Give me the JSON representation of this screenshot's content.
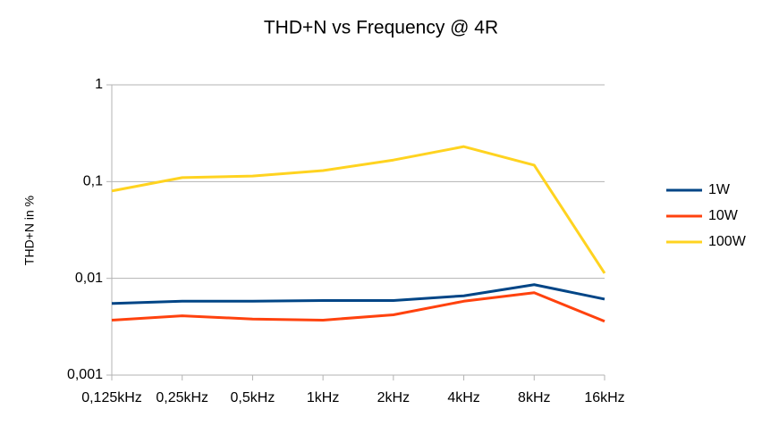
{
  "chart_data": {
    "type": "line",
    "title": "THD+N vs Frequency @ 4R",
    "y_label": "THD+N in %",
    "categories": [
      "0,125kHz",
      "0,25kHz",
      "0,5kHz",
      "1kHz",
      "2kHz",
      "4kHz",
      "8kHz",
      "16kHz"
    ],
    "series": [
      {
        "name": "1W",
        "color": "#004586",
        "values": [
          0.0055,
          0.0058,
          0.0058,
          0.0059,
          0.0059,
          0.0066,
          0.0086,
          0.0061
        ]
      },
      {
        "name": "10W",
        "color": "#ff420e",
        "values": [
          0.0037,
          0.0041,
          0.0038,
          0.0037,
          0.0042,
          0.0058,
          0.0071,
          0.0036
        ]
      },
      {
        "name": "100W",
        "color": "#ffd320",
        "values": [
          0.08,
          0.11,
          0.114,
          0.13,
          0.167,
          0.23,
          0.148,
          0.0113
        ]
      }
    ],
    "ylim": [
      0.001,
      1
    ],
    "log_y": true,
    "yticks": [
      {
        "value": 0.001,
        "label": "0,001"
      },
      {
        "value": 0.01,
        "label": "0,01"
      },
      {
        "value": 0.1,
        "label": "0,1"
      },
      1
    ],
    "grid": true,
    "legend": "right"
  }
}
